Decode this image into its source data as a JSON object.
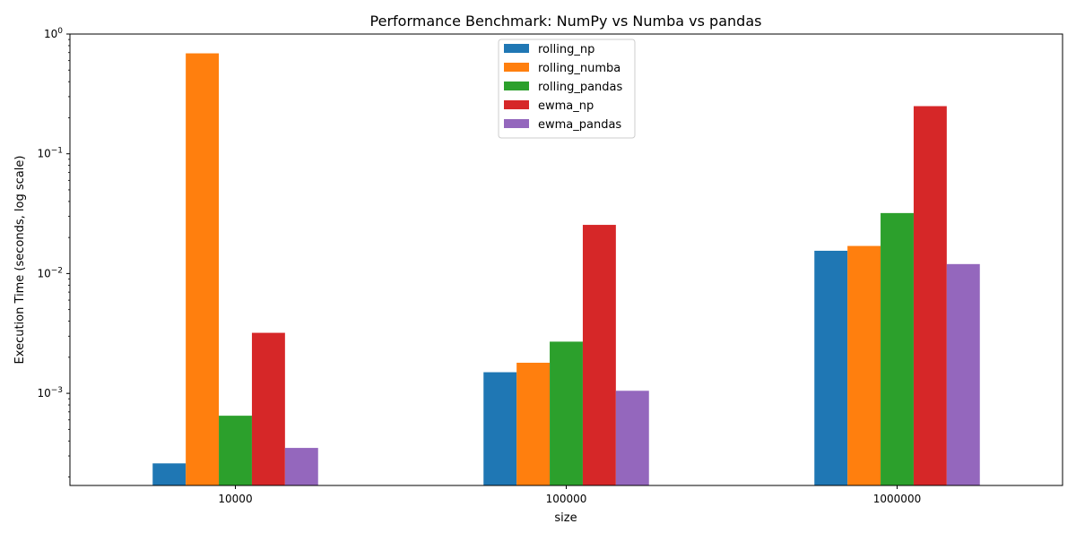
{
  "chart_data": {
    "type": "bar",
    "title": "Performance Benchmark: NumPy vs Numba vs pandas",
    "xlabel": "size",
    "ylabel": "Execution Time (seconds, log scale)",
    "yscale": "log",
    "ylim": [
      0.00017,
      1.0
    ],
    "y_ticks": [
      {
        "value": 0.001,
        "base": "10",
        "exp": "−3"
      },
      {
        "value": 0.01,
        "base": "10",
        "exp": "−2"
      },
      {
        "value": 0.1,
        "base": "10",
        "exp": "−1"
      },
      {
        "value": 1.0,
        "base": "10",
        "exp": "0"
      }
    ],
    "categories": [
      "10000",
      "100000",
      "1000000"
    ],
    "legend_position": "top-center",
    "grid": false,
    "series": [
      {
        "name": "rolling_np",
        "color": "#1f77b4",
        "values": [
          0.00026,
          0.0015,
          0.0155
        ]
      },
      {
        "name": "rolling_numba",
        "color": "#ff7f0e",
        "values": [
          0.69,
          0.0018,
          0.017
        ]
      },
      {
        "name": "rolling_pandas",
        "color": "#2ca02c",
        "values": [
          0.00065,
          0.0027,
          0.032
        ]
      },
      {
        "name": "ewma_np",
        "color": "#d62728",
        "values": [
          0.0032,
          0.0255,
          0.25
        ]
      },
      {
        "name": "ewma_pandas",
        "color": "#9467bd",
        "values": [
          0.00035,
          0.00105,
          0.012
        ]
      }
    ]
  }
}
